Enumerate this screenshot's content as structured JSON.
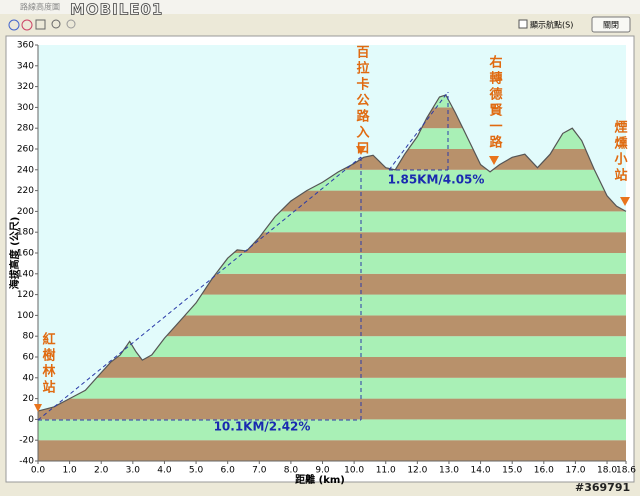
{
  "window": {
    "title": "路線高度圖",
    "checkbox": "顯示航點(S)",
    "button": "關閉",
    "watermark_logo": "MOBILE01",
    "watermark_id": "#369791"
  },
  "chart_data": {
    "type": "area",
    "x_label": "距離 (km)",
    "y_label": "海拔高度 (公尺)",
    "x": [
      0.0,
      0.5,
      1.0,
      1.5,
      2.0,
      2.3,
      2.6,
      2.9,
      3.1,
      3.3,
      3.6,
      4.0,
      4.5,
      5.0,
      5.5,
      6.0,
      6.3,
      6.6,
      7.0,
      7.5,
      8.0,
      8.5,
      9.0,
      9.5,
      10.0,
      10.3,
      10.6,
      11.0,
      11.3,
      11.6,
      12.0,
      12.3,
      12.7,
      12.9,
      13.2,
      13.6,
      14.0,
      14.3,
      14.6,
      15.0,
      15.4,
      15.8,
      16.2,
      16.6,
      16.9,
      17.2,
      17.6,
      18.0,
      18.3,
      18.6
    ],
    "values": [
      8,
      12,
      20,
      28,
      45,
      55,
      62,
      75,
      65,
      57,
      62,
      78,
      95,
      112,
      135,
      155,
      163,
      162,
      175,
      195,
      210,
      220,
      228,
      238,
      246,
      252,
      254,
      242,
      240,
      255,
      272,
      290,
      310,
      312,
      295,
      270,
      245,
      238,
      245,
      252,
      255,
      242,
      255,
      275,
      280,
      268,
      240,
      215,
      205,
      200
    ],
    "line_color": "#555555",
    "sky_color": "#e2fbfb",
    "band_colors": [
      "#b8916b",
      "#a9f0b6"
    ],
    "xlim": [
      0,
      18.6
    ],
    "ylim": [
      -40,
      360
    ],
    "xticks": [
      {
        "value": 0,
        "label": "0.0"
      },
      {
        "value": 1,
        "label": "1.0"
      },
      {
        "value": 2,
        "label": "2.0"
      },
      {
        "value": 3,
        "label": "3.0"
      },
      {
        "value": 4,
        "label": "4.0"
      },
      {
        "value": 5,
        "label": "5.0"
      },
      {
        "value": 6,
        "label": "6.0"
      },
      {
        "value": 7,
        "label": "7.0"
      },
      {
        "value": 8,
        "label": "8.0"
      },
      {
        "value": 9,
        "label": "9.0"
      },
      {
        "value": 10,
        "label": "10.0"
      },
      {
        "value": 11,
        "label": "11.0"
      },
      {
        "value": 12,
        "label": "12.0"
      },
      {
        "value": 13,
        "label": "13.0"
      },
      {
        "value": 14,
        "label": "14.0"
      },
      {
        "value": 15,
        "label": "15.0"
      },
      {
        "value": 16,
        "label": "16.0"
      },
      {
        "value": 17,
        "label": "17.0"
      },
      {
        "value": 18,
        "label": "18.0"
      },
      18.6
    ],
    "yticks": [
      -40,
      -20,
      0,
      20,
      40,
      60,
      80,
      100,
      120,
      140,
      160,
      180,
      200,
      220,
      240,
      260,
      280,
      300,
      320,
      340,
      360
    ],
    "annotations": [
      "紅樹林站",
      "百拉卡公路入口",
      "右轉德賢一路",
      "煙燻小站"
    ],
    "grade_labels": [
      "10.1KM/2.42%",
      "1.85KM/4.05%"
    ]
  }
}
